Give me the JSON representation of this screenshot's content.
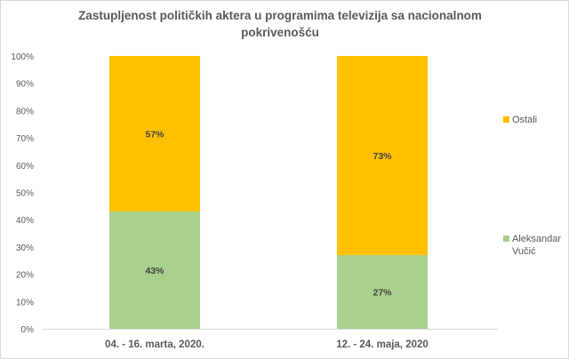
{
  "chart_data": {
    "type": "bar",
    "stacked": true,
    "percent_stacked": true,
    "title": "Zastupljenost političkih aktera u programima televizija sa nacionalnom pokrivenošću",
    "title_lines": [
      "Zastupljenost političkih aktera u programima televizija sa nacionalnom",
      "pokrivenošću"
    ],
    "xlabel": "",
    "ylabel": "",
    "categories": [
      "04. - 16. marta, 2020.",
      "12. - 24. maja, 2020"
    ],
    "series": [
      {
        "name": "Aleksandar Vučić",
        "legend_lines": [
          "Aleksandar",
          "Vučić"
        ],
        "color": "#a9d18e",
        "values": [
          43,
          27
        ],
        "labels": [
          "43%",
          "27%"
        ]
      },
      {
        "name": "Ostali",
        "legend_lines": [
          "Ostali"
        ],
        "color": "#ffc000",
        "values": [
          57,
          73
        ],
        "labels": [
          "57%",
          "73%"
        ]
      }
    ],
    "ylim": [
      0,
      100
    ],
    "yticks": [
      0,
      10,
      20,
      30,
      40,
      50,
      60,
      70,
      80,
      90,
      100
    ],
    "ytick_labels": [
      "0%",
      "10%",
      "20%",
      "30%",
      "40%",
      "50%",
      "60%",
      "70%",
      "80%",
      "90%",
      "100%"
    ],
    "grid": false,
    "legend_position": "right"
  }
}
